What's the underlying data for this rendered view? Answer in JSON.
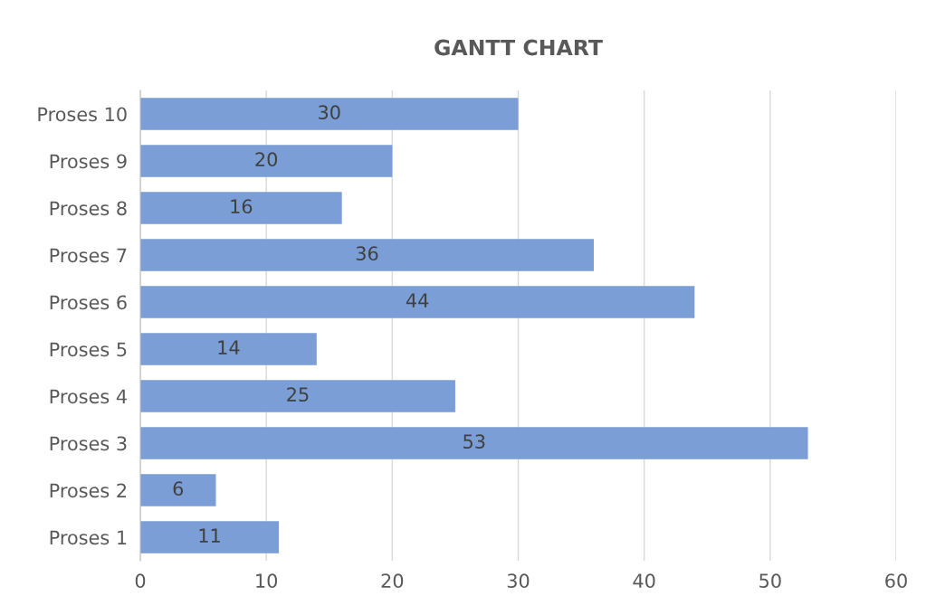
{
  "chart_data": {
    "type": "bar",
    "title": "GANTT CHART",
    "orientation": "horizontal",
    "categories": [
      "Proses 10",
      "Proses 9",
      "Proses 8",
      "Proses 7",
      "Proses 6",
      "Proses 5",
      "Proses 4",
      "Proses 3",
      "Proses 2",
      "Proses 1"
    ],
    "values": [
      30,
      20,
      16,
      36,
      44,
      14,
      25,
      53,
      6,
      11
    ],
    "color": "#7b9ed6",
    "xlim": [
      0,
      60
    ],
    "xticks": [
      0,
      10,
      20,
      30,
      40,
      50,
      60
    ],
    "grid": "x",
    "data_labels": true
  }
}
